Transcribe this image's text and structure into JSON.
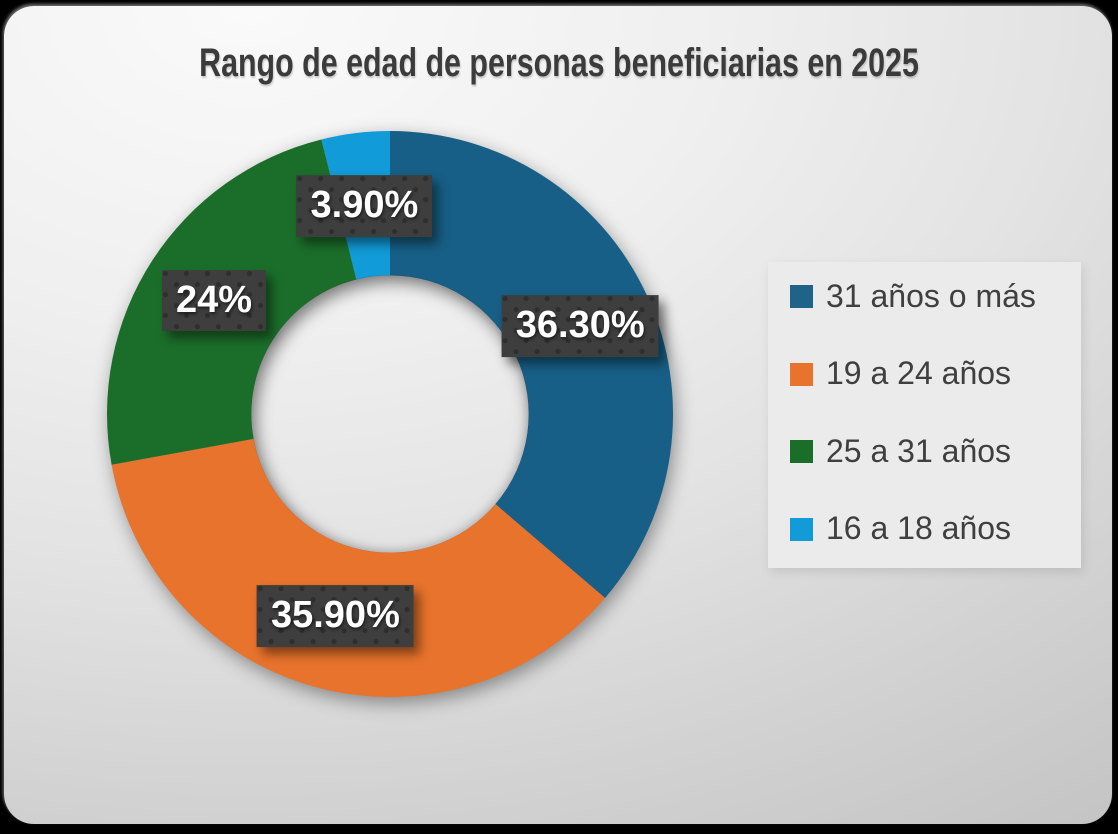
{
  "title": "Rango de edad de personas beneficiarias en 2025",
  "chart_data": {
    "type": "pie",
    "subtype": "donut",
    "title": "Rango de edad de personas beneficiarias en 2025",
    "start_angle_deg": 0,
    "direction": "clockwise",
    "inner_radius_ratio": 0.49,
    "legend_position": "right",
    "grid": false,
    "slices": [
      {
        "category": "31 años o más",
        "value": 36.3,
        "label": "36.30%",
        "color": "#175F86"
      },
      {
        "category": "19 a 24 años",
        "value": 35.9,
        "label": "35.90%",
        "color": "#E8732C"
      },
      {
        "category": "25 a 31 años",
        "value": 24.0,
        "label": "24%",
        "color": "#1B6E2A"
      },
      {
        "category": "16 a 18 años",
        "value": 3.9,
        "label": "3.90%",
        "color": "#119BD8"
      }
    ],
    "label_box_color": "#3E3E3E",
    "label_text_color": "#FFFFFF"
  },
  "legend": {
    "items": [
      {
        "label": "31 años o más",
        "color": "#1F6488"
      },
      {
        "label": "19 a 24 años",
        "color": "#E8732C"
      },
      {
        "label": "25 a 31 años",
        "color": "#1B6E2A"
      },
      {
        "label": "16 a 18 años",
        "color": "#119BD8"
      }
    ]
  },
  "colors": {
    "page_background": "#000000",
    "card_background_light": "#FAFAFA",
    "card_background_dark": "#C3C3C3",
    "title_text": "#3B3B3B",
    "legend_text": "#3F3F3F",
    "legend_panel": "#EBEBEB"
  }
}
